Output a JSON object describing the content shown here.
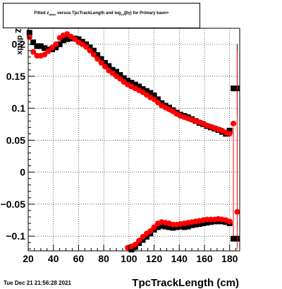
{
  "title": {
    "part1": "Fitted  z",
    "sub1": "dNdx",
    "part2": "  versus TpcTrackLength and log",
    "sub2": "10",
    "part3": "(βγ) for Primary kaon+"
  },
  "timestamp": "Tue Dec 21 21:56:28 2021",
  "colors": {
    "black_series": "#000000",
    "red_series": "#ff0000",
    "grid": "#000000"
  },
  "chart_data": {
    "type": "scatter",
    "xlabel": "TpcTrackLength (cm)",
    "ylabel": "z dNdx",
    "xlim": [
      20,
      188
    ],
    "ylim": [
      -0.123,
      0.225
    ],
    "xticks": [
      20,
      40,
      60,
      80,
      100,
      120,
      140,
      160,
      180
    ],
    "yticks": [
      -0.1,
      -0.05,
      0,
      0.05,
      0.1,
      0.15,
      0.2
    ],
    "ytick_labels": [
      "−0.1",
      "−0.05",
      "0",
      "0.05",
      "0.1",
      "0.15",
      "0.2"
    ],
    "grid": true,
    "series": [
      {
        "marker": "square",
        "color": "#000000",
        "upper": {
          "x": [
            21,
            24,
            27,
            30,
            33,
            36,
            39,
            42,
            45,
            48,
            51,
            54,
            57,
            60,
            63,
            66,
            69,
            72,
            75,
            78,
            81,
            84,
            87,
            90,
            93,
            96,
            99,
            102,
            105,
            108,
            111,
            114,
            117,
            120,
            123,
            126,
            129,
            132,
            135,
            138,
            141,
            144,
            147,
            150,
            153,
            156,
            159,
            162,
            165,
            168,
            171,
            174,
            177,
            180,
            183,
            186
          ],
          "y": [
            0.218,
            0.203,
            0.197,
            0.197,
            0.194,
            0.192,
            0.192,
            0.195,
            0.2,
            0.206,
            0.208,
            0.209,
            0.209,
            0.208,
            0.204,
            0.2,
            0.195,
            0.19,
            0.183,
            0.177,
            0.171,
            0.166,
            0.16,
            0.157,
            0.152,
            0.147,
            0.143,
            0.14,
            0.137,
            0.134,
            0.13,
            0.127,
            0.124,
            0.12,
            0.114,
            0.108,
            0.104,
            0.101,
            0.097,
            0.093,
            0.09,
            0.088,
            0.086,
            0.083,
            0.08,
            0.077,
            0.075,
            0.072,
            0.07,
            0.068,
            0.066,
            0.063,
            0.06,
            0.065,
            0.131,
            0.131
          ]
        },
        "lower": {
          "x": [
            99,
            102,
            105,
            108,
            111,
            114,
            117,
            120,
            123,
            126,
            129,
            132,
            135,
            138,
            141,
            144,
            147,
            150,
            153,
            156,
            159,
            162,
            165,
            168,
            171,
            174,
            177,
            180,
            183,
            186
          ],
          "y": [
            -0.125,
            -0.121,
            -0.117,
            -0.111,
            -0.106,
            -0.101,
            -0.096,
            -0.09,
            -0.086,
            -0.084,
            -0.085,
            -0.086,
            -0.087,
            -0.086,
            -0.085,
            -0.086,
            -0.085,
            -0.083,
            -0.082,
            -0.081,
            -0.08,
            -0.079,
            -0.078,
            -0.077,
            -0.077,
            -0.077,
            -0.078,
            -0.08,
            -0.104,
            -0.104
          ]
        }
      },
      {
        "marker": "circle",
        "color": "#ff0000",
        "upper": {
          "x": [
            21,
            24,
            27,
            30,
            33,
            36,
            39,
            42,
            45,
            48,
            51,
            54,
            57,
            60,
            63,
            66,
            69,
            72,
            75,
            78,
            81,
            84,
            87,
            90,
            93,
            96,
            99,
            102,
            105,
            108,
            111,
            114,
            117,
            120,
            123,
            126,
            129,
            132,
            135,
            138,
            141,
            144,
            147,
            150,
            153,
            156,
            159,
            162,
            165,
            168,
            171,
            174,
            177,
            180,
            183,
            186
          ],
          "y": [
            0.211,
            0.188,
            0.182,
            0.182,
            0.184,
            0.189,
            0.195,
            0.2,
            0.21,
            0.214,
            0.216,
            0.212,
            0.208,
            0.203,
            0.2,
            0.196,
            0.19,
            0.184,
            0.177,
            0.171,
            0.165,
            0.159,
            0.155,
            0.15,
            0.146,
            0.141,
            0.137,
            0.134,
            0.131,
            0.128,
            0.125,
            0.121,
            0.117,
            0.114,
            0.109,
            0.104,
            0.101,
            0.098,
            0.095,
            0.091,
            0.088,
            0.086,
            0.084,
            0.082,
            0.08,
            0.078,
            0.076,
            0.073,
            0.071,
            0.069,
            0.067,
            0.065,
            0.062,
            0.06,
            0.076,
            -0.062
          ]
        },
        "lower": {
          "x": [
            99,
            102,
            105,
            108,
            111,
            114,
            117,
            120,
            123,
            126,
            129,
            132,
            135,
            138,
            141,
            144,
            147,
            150,
            153,
            156,
            159,
            162,
            165,
            168,
            171,
            174,
            177,
            180
          ],
          "y": [
            -0.118,
            -0.116,
            -0.113,
            -0.107,
            -0.101,
            -0.096,
            -0.092,
            -0.086,
            -0.08,
            -0.078,
            -0.079,
            -0.08,
            -0.082,
            -0.082,
            -0.081,
            -0.08,
            -0.079,
            -0.078,
            -0.077,
            -0.076,
            -0.075,
            -0.074,
            -0.074,
            -0.074,
            -0.073,
            -0.074,
            -0.075,
            -0.077
          ]
        }
      }
    ]
  }
}
